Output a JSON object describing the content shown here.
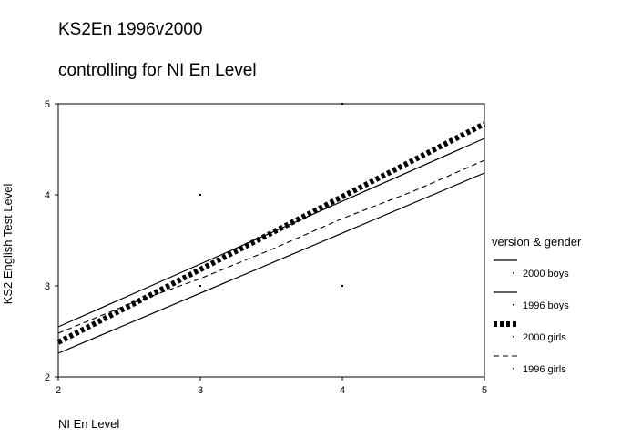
{
  "chart_data": {
    "type": "line",
    "title": "KS2En 1996v2000",
    "subtitle": "controlling for NI En Level",
    "xlabel": "NI En Level",
    "ylabel": "KS2 English Test Level",
    "xlim": [
      2,
      5
    ],
    "ylim": [
      2,
      5
    ],
    "x_ticks": [
      "2",
      "3",
      "4",
      "5"
    ],
    "y_ticks": [
      "2",
      "3",
      "4",
      "5"
    ],
    "grid": false,
    "legend_title": "version & gender",
    "legend_position": "right",
    "series": [
      {
        "name": "2000 boys",
        "style": "solid",
        "x": [
          2,
          5
        ],
        "y": [
          2.55,
          4.62
        ]
      },
      {
        "name": "1996 boys",
        "style": "solid",
        "x": [
          2,
          5
        ],
        "y": [
          2.26,
          4.24
        ]
      },
      {
        "name": "2000 girls",
        "style": "thick-dash",
        "x": [
          2,
          5
        ],
        "y": [
          2.38,
          4.78
        ]
      },
      {
        "name": "1996 girls",
        "style": "dashed",
        "x": [
          2,
          2.5,
          3,
          3.5,
          4,
          4.5,
          5
        ],
        "y": [
          2.48,
          2.8,
          3.08,
          3.4,
          3.74,
          4.04,
          4.38
        ]
      }
    ],
    "annotation_points": [
      {
        "x": 3,
        "y": 4
      },
      {
        "x": 3,
        "y": 3
      },
      {
        "x": 4,
        "y": 3
      },
      {
        "x": 4,
        "y": 5
      }
    ]
  }
}
